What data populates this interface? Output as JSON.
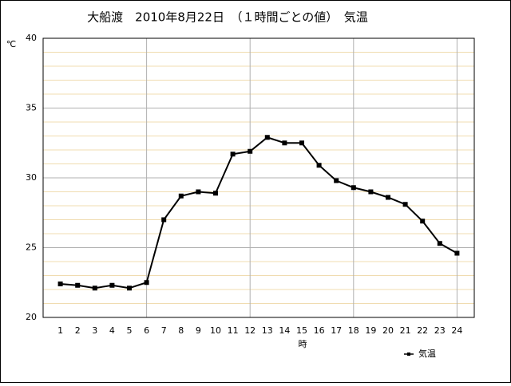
{
  "chart_data": {
    "type": "line",
    "title": "大船渡　2010年8月22日　（１時間ごとの値）　気温",
    "y_unit": "℃",
    "x_label": "時",
    "x": [
      1,
      2,
      3,
      4,
      5,
      6,
      7,
      8,
      9,
      10,
      11,
      12,
      13,
      14,
      15,
      16,
      17,
      18,
      19,
      20,
      21,
      22,
      23,
      24
    ],
    "series": [
      {
        "name": "気温",
        "color": "#000000",
        "values": [
          22.4,
          22.3,
          22.1,
          22.3,
          22.1,
          22.5,
          27.0,
          28.7,
          29.0,
          28.9,
          31.7,
          31.9,
          32.9,
          32.5,
          32.5,
          30.9,
          29.8,
          29.3,
          29.0,
          28.6,
          28.1,
          26.9,
          25.3,
          24.6
        ]
      }
    ],
    "xlim": [
      0,
      25
    ],
    "xticks": [
      1,
      2,
      3,
      4,
      5,
      6,
      7,
      8,
      9,
      10,
      11,
      12,
      13,
      14,
      15,
      16,
      17,
      18,
      19,
      20,
      21,
      22,
      23,
      24
    ],
    "ylim": [
      20,
      40
    ],
    "yticks": [
      20,
      25,
      30,
      35,
      40
    ],
    "grid": true,
    "minor_grid_step": 1,
    "x_grid_step": 6,
    "legend": "lower right"
  }
}
